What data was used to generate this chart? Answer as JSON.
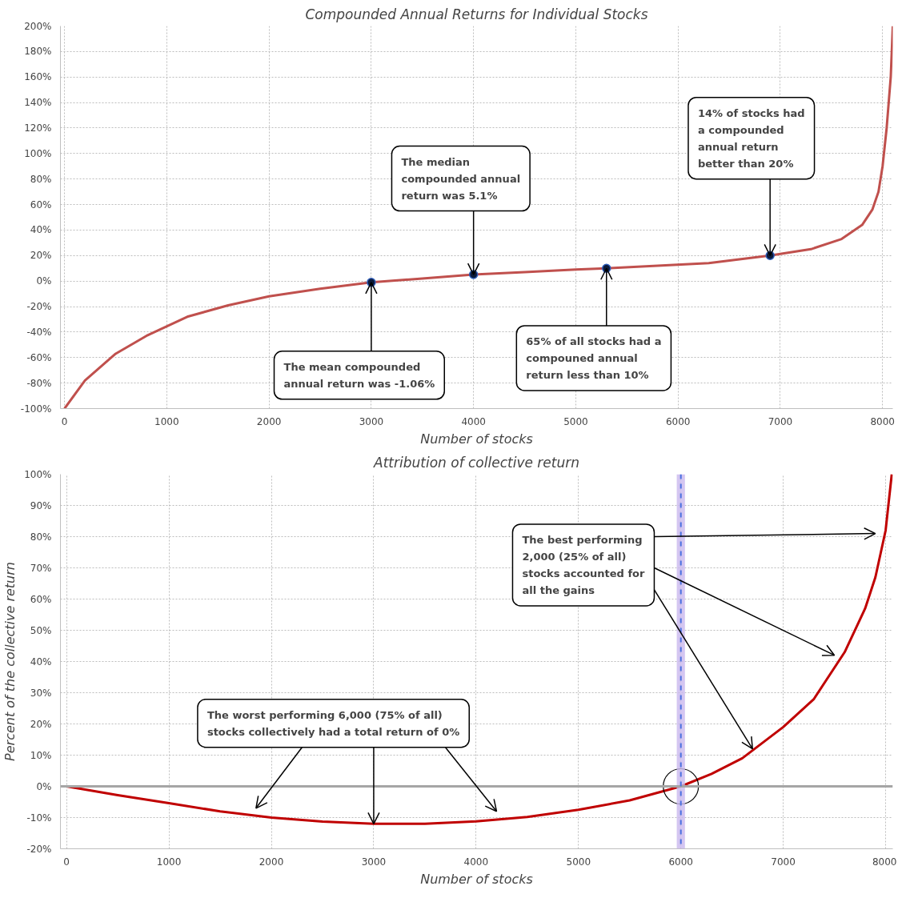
{
  "chart_data": [
    {
      "type": "line",
      "title": "Compounded Annual Returns for Individual Stocks",
      "xlabel": "Number of stocks",
      "xlim": [
        -40,
        8100
      ],
      "ylim": [
        -100,
        200
      ],
      "xticks": [
        0,
        1000,
        2000,
        3000,
        4000,
        5000,
        6000,
        7000,
        8000
      ],
      "yticks": [
        {
          "value": -100,
          "label": "-100%"
        },
        {
          "value": -80,
          "label": "-80%"
        },
        {
          "value": -60,
          "label": "-60%"
        },
        {
          "value": -40,
          "label": "-40%"
        },
        {
          "value": -20,
          "label": "-20%"
        },
        {
          "value": 0,
          "label": "0%"
        },
        {
          "value": 20,
          "label": "20%"
        },
        {
          "value": 40,
          "label": "40%"
        },
        {
          "value": 60,
          "label": "60%"
        },
        {
          "value": 80,
          "label": "80%"
        },
        {
          "value": 100,
          "label": "100%"
        },
        {
          "value": 120,
          "label": "120%"
        },
        {
          "value": 140,
          "label": "140%"
        },
        {
          "value": 160,
          "label": "160%"
        },
        {
          "value": 180,
          "label": "180%"
        },
        {
          "value": 200,
          "label": "200%"
        }
      ],
      "grid": true,
      "line_style": "solid",
      "series": [
        {
          "color": "#c0504d",
          "marker": "none",
          "x": [
            0,
            200,
            500,
            800,
            1200,
            1600,
            2000,
            2500,
            3000,
            3500,
            4000,
            4500,
            5000,
            5300,
            5800,
            6300,
            6900,
            7300,
            7600,
            7800,
            7900,
            7960,
            8000,
            8040,
            8080,
            8100
          ],
          "values": [
            -100,
            -78,
            -57,
            -43,
            -28,
            -19,
            -12,
            -6,
            -1,
            2,
            5.1,
            7,
            9,
            10,
            12,
            14,
            20,
            25,
            33,
            44,
            56,
            70,
            90,
            120,
            160,
            200
          ]
        },
        {
          "type": "scatter",
          "color": "#0b1a3a",
          "marker": "circle",
          "x": [
            3000,
            4000,
            5300,
            6900
          ],
          "values": [
            -1.06,
            5.1,
            10,
            20
          ]
        }
      ],
      "annotations": [
        {
          "text": "The mean compounded\nannual return was -1.06%",
          "x": 3000,
          "y": -1.06
        },
        {
          "text": "The median\ncompounded annual\nreturn was 5.1%",
          "x": 4000,
          "y": 5.1
        },
        {
          "text": "65% of all stocks had a\ncompouned annual\nreturn less than 10%",
          "x": 5300,
          "y": 10
        },
        {
          "text": "14% of stocks had\na compounded\nannual return\nbetter than 20%",
          "x": 6900,
          "y": 20
        }
      ]
    },
    {
      "type": "line",
      "title": "Attribution of collective return",
      "xlabel": "Number of stocks",
      "ylabel": "Percent of the collective return",
      "xlim": [
        -60,
        8070
      ],
      "ylim": [
        -20,
        100
      ],
      "xticks": [
        0,
        1000,
        2000,
        3000,
        4000,
        5000,
        6000,
        7000,
        8000
      ],
      "yticks": [
        {
          "value": -20,
          "label": "-20%"
        },
        {
          "value": -10,
          "label": "-10%"
        },
        {
          "value": 0,
          "label": "0%"
        },
        {
          "value": 10,
          "label": "10%"
        },
        {
          "value": 20,
          "label": "20%"
        },
        {
          "value": 30,
          "label": "30%"
        },
        {
          "value": 40,
          "label": "40%"
        },
        {
          "value": 50,
          "label": "50%"
        },
        {
          "value": 60,
          "label": "60%"
        },
        {
          "value": 70,
          "label": "70%"
        },
        {
          "value": 80,
          "label": "80%"
        },
        {
          "value": 90,
          "label": "90%"
        },
        {
          "value": 100,
          "label": "100%"
        }
      ],
      "grid": true,
      "line_style": "solid",
      "series": [
        {
          "color": "#c00000",
          "marker": "none",
          "x": [
            0,
            500,
            1000,
            1500,
            2000,
            2500,
            3000,
            3500,
            4000,
            4500,
            5000,
            5500,
            6000,
            6300,
            6600,
            7000,
            7300,
            7600,
            7800,
            7900,
            8000,
            8060
          ],
          "values": [
            0,
            -2.8,
            -5.4,
            -8,
            -10,
            -11.3,
            -12,
            -12,
            -11.2,
            -9.8,
            -7.5,
            -4.5,
            0,
            4,
            9,
            19,
            28,
            43,
            57,
            67,
            82,
            100
          ]
        }
      ],
      "ref_lines": [
        {
          "axis": "y",
          "value": 0,
          "color": "#a6a6a6",
          "line_style": "solid"
        },
        {
          "axis": "x",
          "value": 6000,
          "color": "#4a6fe0",
          "line_style": "dashed"
        }
      ],
      "bands": [
        {
          "axis": "x",
          "from": 5960,
          "to": 6040,
          "color": "#c9b8ee"
        }
      ],
      "annotations": [
        {
          "text": "The worst performing  6,000 (75% of all)\nstocks collectively had a total return of 0%",
          "x": 3000,
          "y": -12
        },
        {
          "text": "The best performing\n2,000 (25% of all)\nstocks accounted for\nall the gains",
          "x": 6700,
          "y": 12
        }
      ]
    }
  ]
}
